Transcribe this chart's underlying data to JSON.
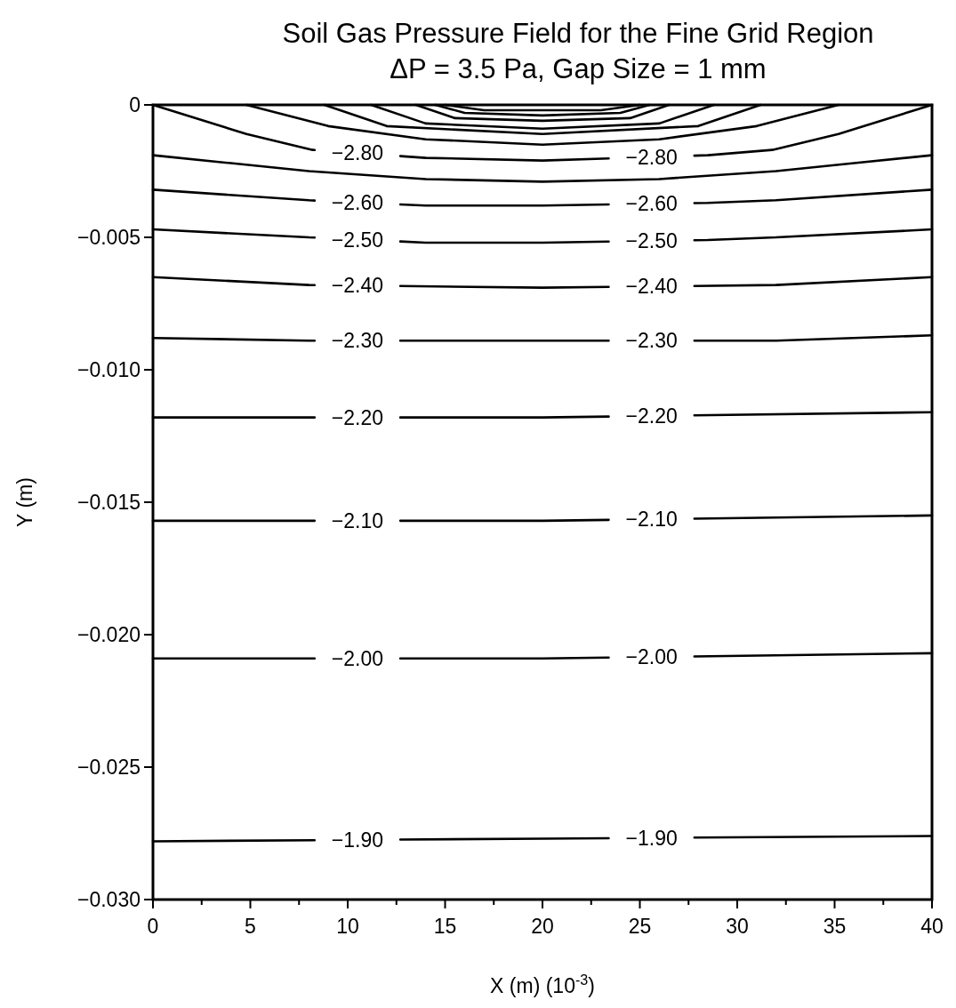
{
  "chart_data": {
    "type": "line",
    "title": "Soil Gas Pressure Field for the Fine Grid Region",
    "subtitle": "ΔP = 3.5 Pa, Gap Size = 1 mm",
    "xlabel": "X (m) (10$^{-3}$)",
    "ylabel": "Y (m)",
    "xlim": [
      0,
      40
    ],
    "ylim": [
      -0.03,
      0
    ],
    "xticks": [
      0,
      {
        "value": 2.5,
        "label": null
      },
      5,
      {
        "value": 7.5,
        "label": null
      },
      10,
      {
        "value": 12.5,
        "label": null
      },
      15,
      {
        "value": 17.5,
        "label": null
      },
      20,
      {
        "value": 22.5,
        "label": null
      },
      25,
      {
        "value": 27.5,
        "label": null
      },
      30,
      {
        "value": 32.5,
        "label": null
      },
      35,
      {
        "value": 37.5,
        "label": null
      },
      40
    ],
    "yticks": [
      {
        "value": -0.03,
        "label": "−0.030"
      },
      {
        "value": -0.025,
        "label": "−0.025"
      },
      {
        "value": -0.02,
        "label": "−0.020"
      },
      {
        "value": -0.015,
        "label": "−0.015"
      },
      {
        "value": -0.01,
        "label": "−0.010"
      },
      {
        "value": -0.005,
        "label": "−0.005"
      },
      0
    ],
    "series": [
      {
        "color": "#000000",
        "x": [
          15,
          17,
          20,
          23,
          25
        ],
        "values": [
          0,
          -0.0002,
          -0.0002,
          -0.0002,
          0
        ]
      },
      {
        "color": "#000000",
        "x": [
          14.5,
          16,
          20,
          24,
          25.5
        ],
        "values": [
          0,
          -0.0003,
          -0.0004,
          -0.0003,
          0
        ]
      },
      {
        "color": "#000000",
        "x": [
          13.5,
          15.5,
          20,
          24.5,
          26.5
        ],
        "values": [
          0,
          -0.0005,
          -0.0006,
          -0.0005,
          0
        ]
      },
      {
        "color": "#000000",
        "x": [
          11.2,
          14,
          20,
          26,
          28.8
        ],
        "values": [
          0,
          -0.0007,
          -0.0009,
          -0.0007,
          0
        ]
      },
      {
        "color": "#000000",
        "x": [
          8.8,
          12,
          20,
          28,
          31.2
        ],
        "values": [
          0,
          -0.0008,
          -0.0011,
          -0.0008,
          0
        ]
      },
      {
        "color": "#000000",
        "x": [
          4.8,
          9,
          14,
          20,
          26,
          31,
          35.2
        ],
        "values": [
          0,
          -0.0008,
          -0.0013,
          -0.0015,
          -0.0013,
          -0.0008,
          0
        ]
      },
      {
        "name": "−2.80",
        "color": "#000000",
        "x": [
          0,
          4.8,
          8.2,
          14,
          20,
          28.5,
          31.8,
          35.2,
          40
        ],
        "values": [
          0,
          -0.0011,
          -0.0017,
          -0.002,
          -0.0021,
          -0.0019,
          -0.0017,
          -0.0011,
          0
        ]
      },
      {
        "color": "#000000",
        "x": [
          0,
          4,
          8,
          14,
          20,
          26,
          32,
          36,
          40
        ],
        "values": [
          -0.0019,
          -0.0022,
          -0.0025,
          -0.0028,
          -0.0029,
          -0.0028,
          -0.0025,
          -0.0022,
          -0.0019
        ]
      },
      {
        "name": "−2.60",
        "color": "#000000",
        "x": [
          0,
          8,
          14,
          20,
          28.5,
          32,
          40
        ],
        "values": [
          -0.0032,
          -0.0036,
          -0.0038,
          -0.0038,
          -0.0037,
          -0.0036,
          -0.0032
        ]
      },
      {
        "name": "−2.50",
        "color": "#000000",
        "x": [
          0,
          8,
          14,
          20,
          28.5,
          32,
          40
        ],
        "values": [
          -0.0047,
          -0.005,
          -0.0052,
          -0.0052,
          -0.0051,
          -0.005,
          -0.0047
        ]
      },
      {
        "name": "−2.40",
        "color": "#000000",
        "x": [
          0,
          8,
          20,
          32,
          40
        ],
        "values": [
          -0.0065,
          -0.0068,
          -0.0069,
          -0.0068,
          -0.0065
        ]
      },
      {
        "name": "−2.30",
        "color": "#000000",
        "x": [
          0,
          8,
          20,
          32,
          40
        ],
        "values": [
          -0.0088,
          -0.0089,
          -0.0089,
          -0.0089,
          -0.0087
        ]
      },
      {
        "name": "−2.20",
        "color": "#000000",
        "x": [
          0,
          20,
          40
        ],
        "values": [
          -0.0118,
          -0.0118,
          -0.0116
        ]
      },
      {
        "name": "−2.10",
        "color": "#000000",
        "x": [
          0,
          20,
          40
        ],
        "values": [
          -0.0157,
          -0.0157,
          -0.0155
        ]
      },
      {
        "name": "−2.00",
        "color": "#000000",
        "x": [
          0,
          20,
          40
        ],
        "values": [
          -0.0209,
          -0.0209,
          -0.0207
        ]
      },
      {
        "name": "−1.90",
        "color": "#000000",
        "x": [
          0,
          20,
          40
        ],
        "values": [
          -0.0278,
          -0.0277,
          -0.0276
        ]
      }
    ]
  }
}
